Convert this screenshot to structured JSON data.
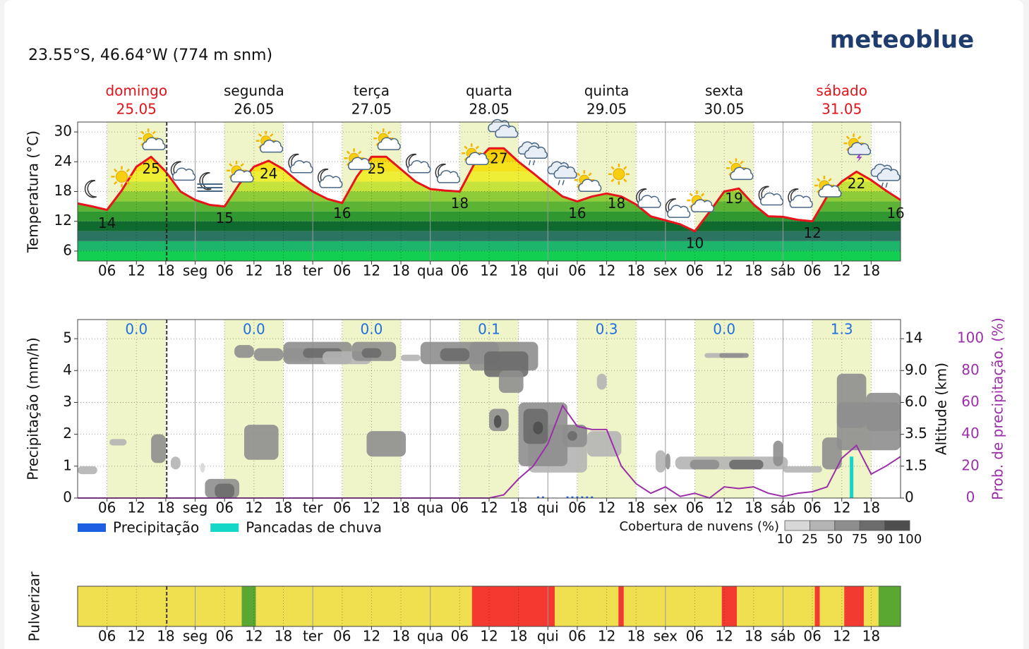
{
  "header": {
    "location": "23.55°S, 46.64°W (774 m snm)",
    "logo": "meteoblue"
  },
  "days": [
    {
      "name": "domingo",
      "date": "25.05",
      "color": "#e0141b"
    },
    {
      "name": "segunda",
      "date": "26.05",
      "color": "#111111"
    },
    {
      "name": "terça",
      "date": "27.05",
      "color": "#111111"
    },
    {
      "name": "quarta",
      "date": "28.05",
      "color": "#111111"
    },
    {
      "name": "quinta",
      "date": "29.05",
      "color": "#111111"
    },
    {
      "name": "sexta",
      "date": "30.05",
      "color": "#111111"
    },
    {
      "name": "sábado",
      "date": "31.05",
      "color": "#e0141b"
    }
  ],
  "time_axis": {
    "xlim": [
      0,
      168
    ],
    "now": 18.2,
    "daylight": [
      6,
      18
    ],
    "xticks": [
      {
        "value": 6,
        "label": "06"
      },
      12,
      18,
      {
        "value": 24,
        "label": "seg"
      },
      {
        "value": 30,
        "label": "06"
      },
      {
        "value": 36,
        "label": "12"
      },
      {
        "value": 42,
        "label": "18"
      },
      {
        "value": 48,
        "label": "ter"
      },
      {
        "value": 54,
        "label": "06"
      },
      {
        "value": 60,
        "label": "12"
      },
      {
        "value": 66,
        "label": "18"
      },
      {
        "value": 72,
        "label": "qua"
      },
      {
        "value": 78,
        "label": "06"
      },
      {
        "value": 84,
        "label": "12"
      },
      {
        "value": 90,
        "label": "18"
      },
      {
        "value": 96,
        "label": "qui"
      },
      {
        "value": 102,
        "label": "06"
      },
      {
        "value": 108,
        "label": "12"
      },
      {
        "value": 114,
        "label": "18"
      },
      {
        "value": 120,
        "label": "sex"
      },
      {
        "value": 126,
        "label": "06"
      },
      {
        "value": 132,
        "label": "12"
      },
      {
        "value": 138,
        "label": "18"
      },
      {
        "value": 144,
        "label": "sáb"
      },
      {
        "value": 150,
        "label": "06"
      },
      {
        "value": 156,
        "label": "12"
      },
      {
        "value": 162,
        "label": "18"
      }
    ]
  },
  "chart_data": [
    {
      "type": "line",
      "ylabel": "Temperatura (°C)",
      "ylim": [
        4,
        32
      ],
      "yticks": [
        6,
        12,
        18,
        24,
        30
      ],
      "color": "#e8141b",
      "x": [
        0,
        3,
        6,
        9,
        12,
        15,
        18,
        21,
        24,
        27,
        30,
        33,
        36,
        39,
        42,
        45,
        48,
        51,
        54,
        57,
        60,
        63,
        66,
        69,
        72,
        75,
        78,
        81,
        84,
        87,
        90,
        93,
        96,
        99,
        102,
        105,
        108,
        111,
        114,
        117,
        120,
        123,
        126,
        129,
        132,
        135,
        138,
        141,
        144,
        147,
        150,
        153,
        156,
        159,
        162,
        165,
        168
      ],
      "values": [
        15.6,
        15,
        14.3,
        18.2,
        23,
        25,
        22,
        18,
        16.3,
        15.3,
        15,
        19.5,
        23,
        24.2,
        22.5,
        20,
        18,
        16.5,
        15.7,
        21,
        25,
        25,
        22.5,
        20,
        18.5,
        18.2,
        18,
        23.6,
        26.7,
        26.7,
        24,
        21.7,
        19.3,
        17,
        16,
        17,
        17.6,
        17,
        15.4,
        13,
        12.2,
        11.4,
        10,
        13.9,
        18,
        18.6,
        15.4,
        13,
        12.9,
        12.3,
        12,
        17,
        20,
        22,
        20.3,
        18.2,
        16.3
      ],
      "fill_scale": [
        [
          4,
          6,
          "#12cf52"
        ],
        [
          6,
          8,
          "#1db46c"
        ],
        [
          8,
          10,
          "#2c7462"
        ],
        [
          10,
          12,
          "#0f6a30"
        ],
        [
          12,
          14,
          "#2f9830"
        ],
        [
          14,
          16,
          "#5db434"
        ],
        [
          16,
          18,
          "#8fcc3a"
        ],
        [
          18,
          20,
          "#c6e23c"
        ],
        [
          20,
          22,
          "#eeee36"
        ],
        [
          22,
          24,
          "#f6e21c"
        ],
        [
          24,
          26,
          "#f6d20a"
        ],
        [
          26,
          28,
          "#f2c000"
        ],
        [
          28,
          32,
          "#f0ac00"
        ]
      ],
      "labels": [
        {
          "x": 6,
          "value": 14
        },
        {
          "x": 15,
          "value": 25
        },
        {
          "x": 30,
          "value": 15
        },
        {
          "x": 39,
          "value": 24
        },
        {
          "x": 54,
          "value": 16
        },
        {
          "x": 61,
          "value": 25
        },
        {
          "x": 78,
          "value": 18
        },
        {
          "x": 86,
          "value": 27
        },
        {
          "x": 102,
          "value": 16
        },
        {
          "x": 110,
          "value": 18
        },
        {
          "x": 126,
          "value": 10
        },
        {
          "x": 134,
          "value": 19
        },
        {
          "x": 150,
          "value": 12
        },
        {
          "x": 159,
          "value": 22
        },
        {
          "x": 167,
          "value": 16
        }
      ],
      "icons": [
        {
          "x": 3,
          "y": 18.5,
          "kind": "moon"
        },
        {
          "x": 9,
          "y": 21,
          "kind": "sun"
        },
        {
          "x": 15,
          "y": 28,
          "kind": "sun-cloud"
        },
        {
          "x": 21,
          "y": 22,
          "kind": "moon-cloud"
        },
        {
          "x": 27,
          "y": 19.5,
          "kind": "fog"
        },
        {
          "x": 33,
          "y": 21.5,
          "kind": "sun-cloud"
        },
        {
          "x": 39,
          "y": 27.5,
          "kind": "sun-cloud"
        },
        {
          "x": 45,
          "y": 23.5,
          "kind": "moon-cloud"
        },
        {
          "x": 51,
          "y": 20.5,
          "kind": "moon-cloud"
        },
        {
          "x": 57,
          "y": 24,
          "kind": "sun-cloud"
        },
        {
          "x": 63,
          "y": 28,
          "kind": "sun-cloud"
        },
        {
          "x": 69,
          "y": 23.5,
          "kind": "moon-cloud"
        },
        {
          "x": 75,
          "y": 21.5,
          "kind": "moon-cloud"
        },
        {
          "x": 81,
          "y": 25,
          "kind": "sun-cloud"
        },
        {
          "x": 87,
          "y": 30.5,
          "kind": "cloud"
        },
        {
          "x": 93,
          "y": 26,
          "kind": "rain-cloud"
        },
        {
          "x": 99,
          "y": 22,
          "kind": "rain-cloud"
        },
        {
          "x": 104,
          "y": 19.6,
          "kind": "sun-cloud"
        },
        {
          "x": 110.5,
          "y": 21.5,
          "kind": "sun"
        },
        {
          "x": 116,
          "y": 16.5,
          "kind": "moon-cloud"
        },
        {
          "x": 122,
          "y": 14.5,
          "kind": "moon-cloud"
        },
        {
          "x": 127,
          "y": 15.5,
          "kind": "sun-cloud"
        },
        {
          "x": 135,
          "y": 22,
          "kind": "sun-cloud"
        },
        {
          "x": 141,
          "y": 17,
          "kind": "moon-cloud"
        },
        {
          "x": 147,
          "y": 16.5,
          "kind": "moon-cloud"
        },
        {
          "x": 153,
          "y": 18.5,
          "kind": "sun-cloud"
        },
        {
          "x": 159,
          "y": 27,
          "kind": "thunder"
        },
        {
          "x": 165,
          "y": 21.5,
          "kind": "rain-cloud"
        }
      ]
    },
    {
      "type": "precipitation",
      "ylabel": "Precipitação (mm/h)",
      "ylim": [
        0,
        5.6
      ],
      "yticks": [
        0,
        1,
        2,
        3,
        4,
        5
      ],
      "y2label": "Altitude (km)",
      "y2ticks": [
        0,
        1.5,
        3.5,
        {
          "value": 6,
          "label": "6.0"
        },
        {
          "value": 9,
          "label": "9.0"
        },
        14
      ],
      "y3label": "Prob. de precipitação. (%)",
      "y3lim": [
        0,
        112
      ],
      "y3ticks": [
        0,
        20,
        40,
        60,
        80,
        100
      ],
      "y3color": "#9b2fa8",
      "daily_totals": {
        "values": [
          0,
          0,
          0,
          0.1,
          0.3,
          0,
          1.3
        ],
        "value_labels": [
          "0.0",
          "0.0",
          "0.0",
          "0.1",
          "0.3",
          "0.0",
          "1.3"
        ],
        "color": "#1f6fe0"
      },
      "series": [
        {
          "name": "Precipitação",
          "color": "#1c5fe0",
          "x": [
            94,
            95,
            100,
            101,
            102,
            103,
            104,
            105
          ],
          "values": [
            0.05,
            0.05,
            0.05,
            0.05,
            0.05,
            0.05,
            0.05,
            0.05
          ]
        },
        {
          "name": "Pancadas de chuva",
          "color": "#15d7c8",
          "x": [
            158
          ],
          "values": [
            1.3
          ]
        }
      ],
      "probability": {
        "x": [
          0,
          3,
          6,
          9,
          12,
          15,
          18,
          21,
          24,
          27,
          30,
          33,
          36,
          39,
          42,
          45,
          48,
          51,
          54,
          57,
          60,
          63,
          66,
          69,
          72,
          75,
          78,
          81,
          84,
          87,
          90,
          93,
          96,
          99,
          102,
          105,
          108,
          111,
          114,
          117,
          120,
          123,
          126,
          129,
          132,
          135,
          138,
          141,
          144,
          147,
          150,
          153,
          156,
          159,
          162,
          165,
          168
        ],
        "values": [
          0,
          0,
          0,
          0,
          0,
          0,
          0,
          0,
          0,
          0,
          0,
          0,
          0,
          0,
          0,
          0,
          0,
          0,
          0,
          0,
          0,
          0,
          0,
          0,
          0,
          0,
          0,
          0,
          0,
          2,
          12,
          20,
          34,
          58,
          45,
          43,
          43,
          20,
          9,
          3,
          7,
          1,
          3,
          0,
          7,
          6,
          7,
          3,
          1,
          3,
          4,
          7,
          25,
          33,
          15,
          20,
          26
        ]
      },
      "cloud_cover": {
        "label": "Cobertura de nuvens (%)",
        "ticks": [
          10,
          25,
          50,
          75,
          90,
          100
        ],
        "colors": [
          "#d8d8d8",
          "#b4b4b4",
          "#8e8e8e",
          "#6c6c6c",
          "#4e4e4e"
        ],
        "patches": [
          [
            0,
            4,
            0.75,
            1.0,
            25
          ],
          [
            6.5,
            10,
            1.65,
            1.85,
            25
          ],
          [
            15,
            18,
            1.1,
            2.0,
            50
          ],
          [
            19,
            21,
            0.9,
            1.3,
            25
          ],
          [
            25,
            26,
            0.8,
            1.1,
            10
          ],
          [
            26,
            33,
            0,
            0.6,
            50
          ],
          [
            28,
            32,
            0,
            0.45,
            75
          ],
          [
            32,
            36,
            4.4,
            4.8,
            50
          ],
          [
            34,
            41,
            1.2,
            2.3,
            50
          ],
          [
            36,
            42,
            4.3,
            4.7,
            50
          ],
          [
            42,
            48,
            4.3,
            4.7,
            25
          ],
          [
            42,
            56,
            4.2,
            4.9,
            50
          ],
          [
            46,
            54,
            4.4,
            4.7,
            75
          ],
          [
            50,
            60,
            4.2,
            4.6,
            25
          ],
          [
            56,
            65,
            4.3,
            4.9,
            50
          ],
          [
            58,
            62,
            4.4,
            4.7,
            75
          ],
          [
            59,
            67,
            1.3,
            2.1,
            50
          ],
          [
            66,
            70,
            4.3,
            4.5,
            25
          ],
          [
            70,
            86,
            4.2,
            4.9,
            50
          ],
          [
            74,
            80,
            4.3,
            4.7,
            75
          ],
          [
            80,
            94,
            4.0,
            4.9,
            50
          ],
          [
            83,
            92,
            3.8,
            4.6,
            75
          ],
          [
            86,
            91,
            3.3,
            4.0,
            50
          ],
          [
            84,
            88,
            2.1,
            2.8,
            50
          ],
          [
            85,
            86.5,
            2.2,
            2.6,
            90
          ],
          [
            92,
            104,
            0.8,
            2.3,
            25
          ],
          [
            90,
            100,
            1.0,
            3.0,
            50
          ],
          [
            91,
            96,
            1.7,
            2.8,
            75
          ],
          [
            93,
            95,
            2.0,
            2.4,
            90
          ],
          [
            99,
            104,
            1.6,
            2.3,
            50
          ],
          [
            100,
            102,
            1.8,
            2.1,
            75
          ],
          [
            104,
            111,
            1.3,
            2.1,
            25
          ],
          [
            106,
            108,
            3.4,
            3.9,
            25
          ],
          [
            118,
            120,
            0.8,
            1.5,
            25
          ],
          [
            122,
            145,
            0.9,
            1.3,
            25
          ],
          [
            120,
            121,
            0.9,
            1.4,
            50
          ],
          [
            125,
            131,
            0.9,
            1.2,
            50
          ],
          [
            133,
            140,
            0.9,
            1.2,
            75
          ],
          [
            142,
            144,
            1.0,
            1.8,
            50
          ],
          [
            128,
            136,
            4.4,
            4.55,
            25
          ],
          [
            131,
            137,
            4.4,
            4.55,
            50
          ],
          [
            144,
            152,
            0.8,
            1.0,
            25
          ],
          [
            152,
            156,
            0.9,
            1.9,
            50
          ],
          [
            155,
            168,
            1.5,
            3.0,
            50
          ],
          [
            155,
            161,
            2.2,
            3.9,
            50
          ],
          [
            161,
            168,
            2.1,
            3.3,
            50
          ]
        ]
      }
    },
    {
      "type": "band",
      "ylabel": "Pulverizar",
      "segments": [
        [
          0,
          33.5,
          "#f0e050"
        ],
        [
          33.5,
          36.4,
          "#5aa832"
        ],
        [
          36.4,
          80.5,
          "#f0e050"
        ],
        [
          80.5,
          97.4,
          "#f43a30"
        ],
        [
          97.4,
          110.4,
          "#f0e050"
        ],
        [
          110.4,
          111.5,
          "#f43a30"
        ],
        [
          111.5,
          131.5,
          "#f0e050"
        ],
        [
          131.5,
          134.6,
          "#f43a30"
        ],
        [
          134.6,
          150.5,
          "#f0e050"
        ],
        [
          150.5,
          151.5,
          "#f43a30"
        ],
        [
          151.5,
          156.5,
          "#f0e050"
        ],
        [
          156.5,
          160.5,
          "#f43a30"
        ],
        [
          160.5,
          163.5,
          "#f0e050"
        ],
        [
          163.5,
          168,
          "#5aa832"
        ]
      ]
    }
  ]
}
